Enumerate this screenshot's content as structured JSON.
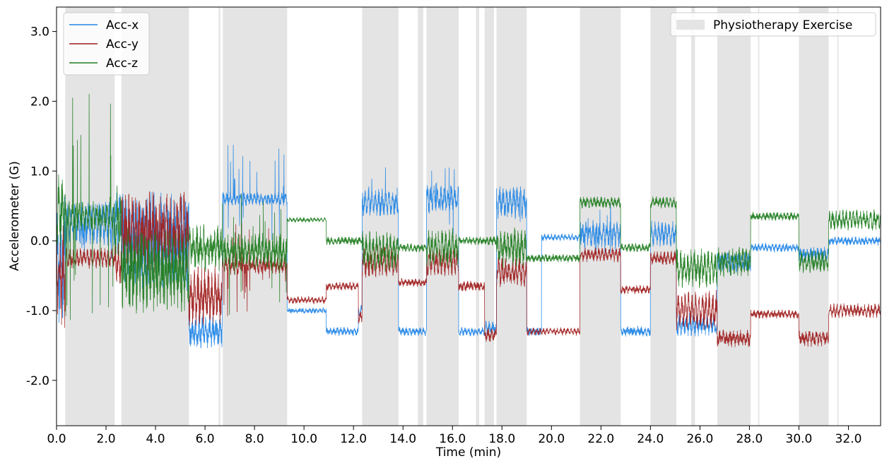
{
  "chart_data": {
    "type": "line",
    "title": "",
    "xlabel": "Time (min)",
    "ylabel": "Accelerometer (G)",
    "xlim": [
      0,
      33.3
    ],
    "ylim": [
      -2.65,
      3.35
    ],
    "x_ticks": [
      0,
      2,
      4,
      6,
      8,
      10,
      12,
      14,
      16,
      18,
      20,
      22,
      24,
      26,
      28,
      30,
      32
    ],
    "x_tick_labels": [
      "0.0",
      "2.0",
      "4.0",
      "6.0",
      "8.0",
      "10.0",
      "12.0",
      "14.0",
      "16.0",
      "18.0",
      "20.0",
      "22.0",
      "24.0",
      "26.0",
      "28.0",
      "30.0",
      "32.0"
    ],
    "y_ticks": [
      -2,
      -1,
      0,
      1,
      2,
      3
    ],
    "y_tick_labels": [
      "-2.0",
      "-1.0",
      "0.0",
      "1.0",
      "2.0",
      "3.0"
    ],
    "grid": false,
    "legend_placement": "top-left",
    "shaded_legend_placement": "top-right",
    "shaded_label": "Physiotherapy Exercise",
    "shaded_color": "#e4e4e4",
    "shaded_intervals": [
      [
        0.35,
        2.35
      ],
      [
        2.62,
        5.35
      ],
      [
        6.55,
        6.62
      ],
      [
        6.72,
        9.32
      ],
      [
        12.35,
        13.82
      ],
      [
        14.6,
        14.82
      ],
      [
        14.95,
        16.25
      ],
      [
        16.95,
        17.08
      ],
      [
        17.3,
        17.68
      ],
      [
        17.78,
        19.0
      ],
      [
        21.15,
        22.8
      ],
      [
        24.0,
        25.05
      ],
      [
        25.65,
        25.8
      ],
      [
        26.7,
        28.05
      ],
      [
        28.35,
        28.4
      ],
      [
        30.0,
        31.2
      ],
      [
        31.55,
        31.6
      ]
    ],
    "series": [
      {
        "name": "Acc-x",
        "color": "#1f84e6",
        "segments": [
          {
            "x0": 0.0,
            "x1": 0.35,
            "level": -0.3,
            "amp": 0.9,
            "noise": 0.5
          },
          {
            "x0": 0.35,
            "x1": 2.35,
            "level": 0.25,
            "amp": 0.35,
            "noise": 0.15,
            "spikes": 0.15
          },
          {
            "x0": 2.35,
            "x1": 2.62,
            "level": 0.3,
            "amp": 0.5,
            "noise": 0.3
          },
          {
            "x0": 2.62,
            "x1": 5.35,
            "level": 0.0,
            "amp": 0.55,
            "noise": 0.45
          },
          {
            "x0": 5.35,
            "x1": 6.7,
            "level": -1.3,
            "amp": 0.2,
            "noise": 0.15
          },
          {
            "x0": 6.7,
            "x1": 9.32,
            "level": 0.6,
            "amp": 0.1,
            "noise": 0.05,
            "spikes": 0.3
          },
          {
            "x0": 9.32,
            "x1": 10.9,
            "level": -1.0,
            "amp": 0.03,
            "noise": 0.03
          },
          {
            "x0": 10.9,
            "x1": 12.2,
            "level": -1.3,
            "amp": 0.05,
            "noise": 0.04
          },
          {
            "x0": 12.2,
            "x1": 12.35,
            "level": -1.0,
            "amp": 0.1,
            "noise": 0.05
          },
          {
            "x0": 12.35,
            "x1": 13.82,
            "level": 0.55,
            "amp": 0.2,
            "noise": 0.1,
            "spikes": 0.15
          },
          {
            "x0": 13.82,
            "x1": 14.95,
            "level": -1.3,
            "amp": 0.05,
            "noise": 0.04
          },
          {
            "x0": 14.95,
            "x1": 16.25,
            "level": 0.6,
            "amp": 0.2,
            "noise": 0.1,
            "spikes": 0.15
          },
          {
            "x0": 16.25,
            "x1": 17.3,
            "level": -1.3,
            "amp": 0.05,
            "noise": 0.04
          },
          {
            "x0": 17.3,
            "x1": 17.78,
            "level": -1.25,
            "amp": 0.1,
            "noise": 0.06
          },
          {
            "x0": 17.78,
            "x1": 19.0,
            "level": 0.55,
            "amp": 0.25,
            "noise": 0.12,
            "spikes": 0.15
          },
          {
            "x0": 19.0,
            "x1": 19.6,
            "level": -1.3,
            "amp": 0.05,
            "noise": 0.04
          },
          {
            "x0": 19.6,
            "x1": 21.15,
            "level": 0.05,
            "amp": 0.05,
            "noise": 0.03
          },
          {
            "x0": 21.15,
            "x1": 22.8,
            "level": 0.1,
            "amp": 0.2,
            "noise": 0.1,
            "spikes": 0.1
          },
          {
            "x0": 22.8,
            "x1": 24.0,
            "level": -1.3,
            "amp": 0.05,
            "noise": 0.05
          },
          {
            "x0": 24.0,
            "x1": 25.05,
            "level": 0.1,
            "amp": 0.2,
            "noise": 0.1
          },
          {
            "x0": 25.05,
            "x1": 26.7,
            "level": -1.2,
            "amp": 0.15,
            "noise": 0.1
          },
          {
            "x0": 26.7,
            "x1": 28.05,
            "level": -0.3,
            "amp": 0.15,
            "noise": 0.08
          },
          {
            "x0": 28.05,
            "x1": 30.0,
            "level": -0.1,
            "amp": 0.05,
            "noise": 0.04
          },
          {
            "x0": 30.0,
            "x1": 31.2,
            "level": -0.2,
            "amp": 0.1,
            "noise": 0.07
          },
          {
            "x0": 31.2,
            "x1": 33.3,
            "level": 0.0,
            "amp": 0.05,
            "noise": 0.04
          }
        ]
      },
      {
        "name": "Acc-y",
        "color": "#a01d1d",
        "segments": [
          {
            "x0": 0.0,
            "x1": 0.35,
            "level": -0.5,
            "amp": 0.8,
            "noise": 0.45
          },
          {
            "x0": 0.35,
            "x1": 2.35,
            "level": -0.25,
            "amp": 0.15,
            "noise": 0.08
          },
          {
            "x0": 2.35,
            "x1": 2.62,
            "level": -0.3,
            "amp": 0.4,
            "noise": 0.2
          },
          {
            "x0": 2.62,
            "x1": 5.35,
            "level": 0.1,
            "amp": 0.45,
            "noise": 0.4
          },
          {
            "x0": 5.35,
            "x1": 6.7,
            "level": -0.8,
            "amp": 0.4,
            "noise": 0.25
          },
          {
            "x0": 6.7,
            "x1": 9.32,
            "level": -0.35,
            "amp": 0.12,
            "noise": 0.08,
            "spikes": 0.25
          },
          {
            "x0": 9.32,
            "x1": 10.9,
            "level": -0.85,
            "amp": 0.05,
            "noise": 0.03
          },
          {
            "x0": 10.9,
            "x1": 12.2,
            "level": -0.65,
            "amp": 0.05,
            "noise": 0.04
          },
          {
            "x0": 12.2,
            "x1": 12.35,
            "level": -1.1,
            "amp": 0.1,
            "noise": 0.05
          },
          {
            "x0": 12.35,
            "x1": 13.82,
            "level": -0.3,
            "amp": 0.25,
            "noise": 0.12
          },
          {
            "x0": 13.82,
            "x1": 14.95,
            "level": -0.6,
            "amp": 0.05,
            "noise": 0.04
          },
          {
            "x0": 14.95,
            "x1": 16.25,
            "level": -0.3,
            "amp": 0.2,
            "noise": 0.12
          },
          {
            "x0": 16.25,
            "x1": 17.3,
            "level": -0.65,
            "amp": 0.05,
            "noise": 0.05
          },
          {
            "x0": 17.3,
            "x1": 17.78,
            "level": -1.35,
            "amp": 0.1,
            "noise": 0.06
          },
          {
            "x0": 17.78,
            "x1": 19.0,
            "level": -0.45,
            "amp": 0.2,
            "noise": 0.12
          },
          {
            "x0": 19.0,
            "x1": 21.15,
            "level": -1.3,
            "amp": 0.05,
            "noise": 0.03
          },
          {
            "x0": 21.15,
            "x1": 22.8,
            "level": -0.2,
            "amp": 0.1,
            "noise": 0.06
          },
          {
            "x0": 22.8,
            "x1": 24.0,
            "level": -0.7,
            "amp": 0.05,
            "noise": 0.04
          },
          {
            "x0": 24.0,
            "x1": 25.05,
            "level": -0.25,
            "amp": 0.1,
            "noise": 0.06
          },
          {
            "x0": 25.05,
            "x1": 26.7,
            "level": -1.0,
            "amp": 0.3,
            "noise": 0.15
          },
          {
            "x0": 26.7,
            "x1": 28.05,
            "level": -1.4,
            "amp": 0.1,
            "noise": 0.08
          },
          {
            "x0": 28.05,
            "x1": 30.0,
            "level": -1.05,
            "amp": 0.05,
            "noise": 0.04
          },
          {
            "x0": 30.0,
            "x1": 31.2,
            "level": -1.4,
            "amp": 0.1,
            "noise": 0.07
          },
          {
            "x0": 31.2,
            "x1": 33.3,
            "level": -1.0,
            "amp": 0.1,
            "noise": 0.06
          }
        ]
      },
      {
        "name": "Acc-z",
        "color": "#1e7d1e",
        "segments": [
          {
            "x0": 0.0,
            "x1": 0.35,
            "level": 0.4,
            "amp": 0.5,
            "noise": 0.3
          },
          {
            "x0": 0.35,
            "x1": 2.35,
            "level": 0.35,
            "amp": 0.25,
            "noise": 0.1,
            "spikes": 0.6
          },
          {
            "x0": 2.35,
            "x1": 2.62,
            "level": 0.3,
            "amp": 0.5,
            "noise": 0.3
          },
          {
            "x0": 2.62,
            "x1": 5.35,
            "level": -0.4,
            "amp": 0.5,
            "noise": 0.4
          },
          {
            "x0": 5.35,
            "x1": 6.7,
            "level": -0.1,
            "amp": 0.3,
            "noise": 0.2
          },
          {
            "x0": 6.7,
            "x1": 9.32,
            "level": -0.15,
            "amp": 0.25,
            "noise": 0.15,
            "spikes": 0.3
          },
          {
            "x0": 9.32,
            "x1": 10.9,
            "level": 0.3,
            "amp": 0.03,
            "noise": 0.02
          },
          {
            "x0": 10.9,
            "x1": 12.35,
            "level": 0.0,
            "amp": 0.05,
            "noise": 0.04
          },
          {
            "x0": 12.35,
            "x1": 13.82,
            "level": -0.15,
            "amp": 0.3,
            "noise": 0.15
          },
          {
            "x0": 13.82,
            "x1": 14.95,
            "level": -0.1,
            "amp": 0.05,
            "noise": 0.04
          },
          {
            "x0": 14.95,
            "x1": 16.25,
            "level": -0.1,
            "amp": 0.3,
            "noise": 0.15
          },
          {
            "x0": 16.25,
            "x1": 17.78,
            "level": 0.0,
            "amp": 0.05,
            "noise": 0.04
          },
          {
            "x0": 17.78,
            "x1": 19.0,
            "level": -0.1,
            "amp": 0.3,
            "noise": 0.15
          },
          {
            "x0": 19.0,
            "x1": 21.15,
            "level": -0.25,
            "amp": 0.05,
            "noise": 0.04
          },
          {
            "x0": 21.15,
            "x1": 22.8,
            "level": 0.55,
            "amp": 0.08,
            "noise": 0.05
          },
          {
            "x0": 22.8,
            "x1": 24.0,
            "level": -0.1,
            "amp": 0.05,
            "noise": 0.04
          },
          {
            "x0": 24.0,
            "x1": 25.05,
            "level": 0.55,
            "amp": 0.08,
            "noise": 0.05
          },
          {
            "x0": 25.05,
            "x1": 26.7,
            "level": -0.4,
            "amp": 0.3,
            "noise": 0.15
          },
          {
            "x0": 26.7,
            "x1": 28.05,
            "level": -0.3,
            "amp": 0.2,
            "noise": 0.12
          },
          {
            "x0": 28.05,
            "x1": 30.0,
            "level": 0.35,
            "amp": 0.05,
            "noise": 0.04
          },
          {
            "x0": 30.0,
            "x1": 31.2,
            "level": -0.3,
            "amp": 0.15,
            "noise": 0.1
          },
          {
            "x0": 31.2,
            "x1": 33.3,
            "level": 0.3,
            "amp": 0.15,
            "noise": 0.08
          }
        ]
      }
    ]
  }
}
